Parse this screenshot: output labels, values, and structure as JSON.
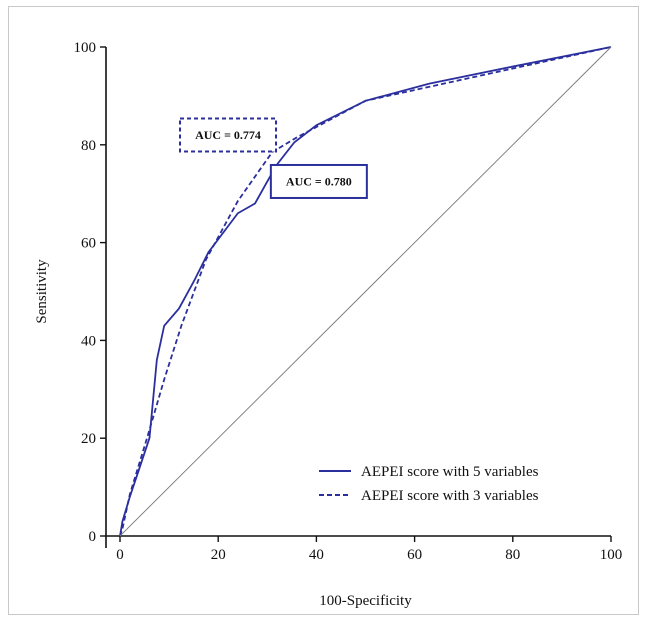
{
  "chart_data": {
    "type": "line",
    "title": "",
    "xlabel": "100-Specificity",
    "ylabel": "Sensitivity",
    "xlim": [
      0,
      100
    ],
    "ylim": [
      0,
      100
    ],
    "xticks": [
      0,
      20,
      40,
      60,
      80,
      100
    ],
    "yticks": [
      0,
      20,
      40,
      60,
      80,
      100
    ],
    "grid": false,
    "legend_position": "bottom-right",
    "series": [
      {
        "name": "AEPEI score with 5 variables",
        "style": "solid",
        "color": "#2b2f9e",
        "x": [
          0,
          0.5,
          2,
          4,
          6,
          7.5,
          9,
          12,
          15,
          18,
          24,
          27.5,
          30,
          32,
          35.5,
          40,
          50,
          63,
          80,
          100
        ],
        "y": [
          0,
          3,
          8,
          14,
          20,
          36,
          43,
          46.5,
          52,
          58,
          66,
          68,
          72.5,
          76,
          80.5,
          84,
          89,
          92.5,
          96,
          100
        ]
      },
      {
        "name": "AEPEI score with 3 variables",
        "style": "dashed",
        "color": "#2b2f9e",
        "x": [
          0,
          0.5,
          2,
          5.5,
          9,
          12.5,
          17.5,
          24,
          31,
          36,
          50,
          100
        ],
        "y": [
          0,
          1.5,
          8.5,
          20,
          32,
          43,
          56.5,
          68.5,
          78.5,
          81.5,
          89,
          100
        ]
      },
      {
        "name": "",
        "style": "reference",
        "color": "#777777",
        "x": [
          0,
          100
        ],
        "y": [
          0,
          100
        ]
      }
    ],
    "annotations": [
      {
        "text": "AUC = 0.774",
        "border": "dashed",
        "anchor_x": 22,
        "anchor_y": 82
      },
      {
        "text": "AUC = 0.780",
        "border": "solid",
        "anchor_x": 40.5,
        "anchor_y": 72.5
      }
    ]
  }
}
